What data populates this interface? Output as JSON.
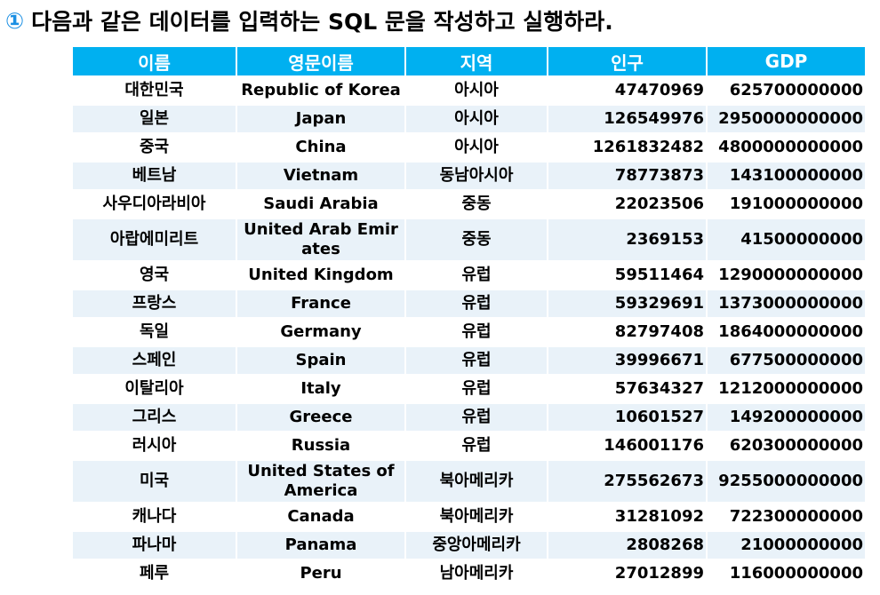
{
  "heading": {
    "number": "①",
    "text": "다음과 같은 데이터를 입력하는 SQL 문을 작성하고 실행하라."
  },
  "table": {
    "headers": [
      "이름",
      "영문이름",
      "지역",
      "인구",
      "GDP"
    ],
    "rows": [
      [
        "대한민국",
        "Republic of Korea",
        "아시아",
        "47470969",
        "625700000000"
      ],
      [
        "일본",
        "Japan",
        "아시아",
        "126549976",
        "2950000000000"
      ],
      [
        "중국",
        "China",
        "아시아",
        "1261832482",
        "4800000000000"
      ],
      [
        "베트남",
        "Vietnam",
        "동남아시아",
        "78773873",
        "143100000000"
      ],
      [
        "사우디아라비아",
        "Saudi Arabia",
        "중동",
        "22023506",
        "191000000000"
      ],
      [
        "아랍에미리트",
        "United Arab Emirates",
        "중동",
        "2369153",
        "41500000000"
      ],
      [
        "영국",
        "United Kingdom",
        "유럽",
        "59511464",
        "1290000000000"
      ],
      [
        "프랑스",
        "France",
        "유럽",
        "59329691",
        "1373000000000"
      ],
      [
        "독일",
        "Germany",
        "유럽",
        "82797408",
        "1864000000000"
      ],
      [
        "스페인",
        "Spain",
        "유럽",
        "39996671",
        "677500000000"
      ],
      [
        "이탈리아",
        "Italy",
        "유럽",
        "57634327",
        "1212000000000"
      ],
      [
        "그리스",
        "Greece",
        "유럽",
        "10601527",
        "149200000000"
      ],
      [
        "러시아",
        "Russia",
        "유럽",
        "146001176",
        "620300000000"
      ],
      [
        "미국",
        "United States of America",
        "북아메리카",
        "275562673",
        "9255000000000"
      ],
      [
        "캐나다",
        "Canada",
        "북아메리카",
        "31281092",
        "722300000000"
      ],
      [
        "파나마",
        "Panama",
        "중앙아메리카",
        "2808268",
        "21000000000"
      ],
      [
        "페루",
        "Peru",
        "남아메리카",
        "27012899",
        "116000000000"
      ]
    ]
  }
}
